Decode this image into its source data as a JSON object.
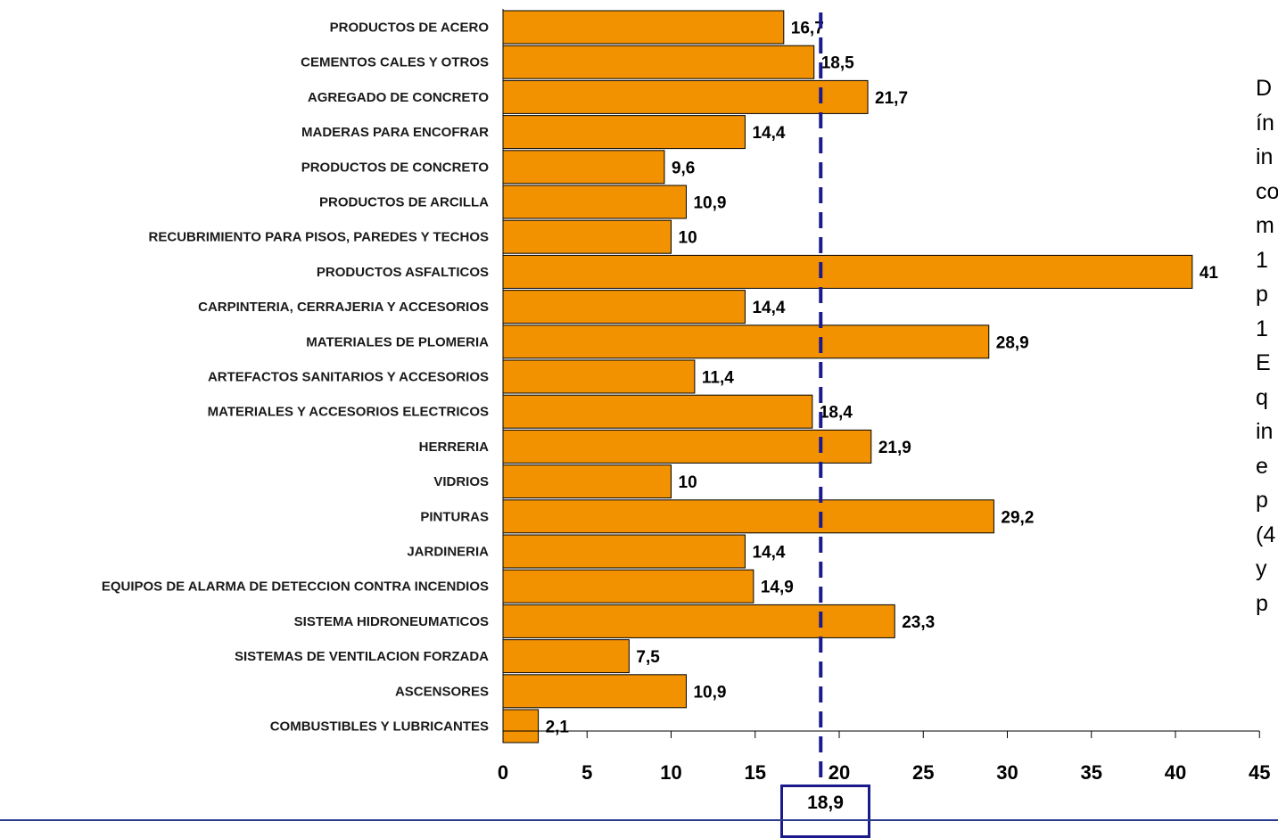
{
  "chart_data": {
    "type": "bar",
    "orientation": "horizontal",
    "categories": [
      "PRODUCTOS DE ACERO",
      "CEMENTOS CALES Y OTROS",
      "AGREGADO DE CONCRETO",
      "MADERAS PARA ENCOFRAR",
      "PRODUCTOS DE CONCRETO",
      "PRODUCTOS DE ARCILLA",
      "RECUBRIMIENTO PARA PISOS, PAREDES Y TECHOS",
      "PRODUCTOS ASFALTICOS",
      "CARPINTERIA, CERRAJERIA Y ACCESORIOS",
      "MATERIALES DE PLOMERIA",
      "ARTEFACTOS SANITARIOS Y ACCESORIOS",
      "MATERIALES Y ACCESORIOS ELECTRICOS",
      "HERRERIA",
      "VIDRIOS",
      "PINTURAS",
      "JARDINERIA",
      "EQUIPOS DE ALARMA DE DETECCION CONTRA INCENDIOS",
      "SISTEMA HIDRONEUMATICOS",
      "SISTEMAS DE VENTILACION FORZADA",
      "ASCENSORES",
      "COMBUSTIBLES Y LUBRICANTES"
    ],
    "values": [
      16.7,
      18.5,
      21.7,
      14.4,
      9.6,
      10.9,
      10,
      41,
      14.4,
      28.9,
      11.4,
      18.4,
      21.9,
      10,
      29.2,
      14.4,
      14.9,
      23.3,
      7.5,
      10.9,
      2.1
    ],
    "value_labels": [
      "16,7",
      "18,5",
      "21,7",
      "14,4",
      "9,6",
      "10,9",
      "10",
      "41",
      "14,4",
      "28,9",
      "11,4",
      "18,4",
      "21,9",
      "10",
      "29,2",
      "14,4",
      "14,9",
      "23,3",
      "7,5",
      "10,9",
      "2,1"
    ],
    "xlim": [
      0,
      45
    ],
    "x_ticks": [
      0,
      5,
      10,
      15,
      20,
      25,
      30,
      35,
      40,
      45
    ],
    "bar_color": "#F39200",
    "bar_edge_color": "#000000",
    "reference_line": {
      "value": 18.9,
      "label": "18,9",
      "color": "#1a1a8c",
      "style": "dashed"
    },
    "grid": false,
    "legend": "none",
    "title": "",
    "xlabel": "",
    "ylabel": ""
  },
  "side_text": [
    "D",
    "ín",
    "in",
    "co",
    "m",
    "1",
    "p",
    "1",
    "E",
    "q",
    "in",
    "e",
    "p",
    "(4",
    "y",
    "p"
  ],
  "colors": {
    "rule": "#2b3a8c"
  }
}
